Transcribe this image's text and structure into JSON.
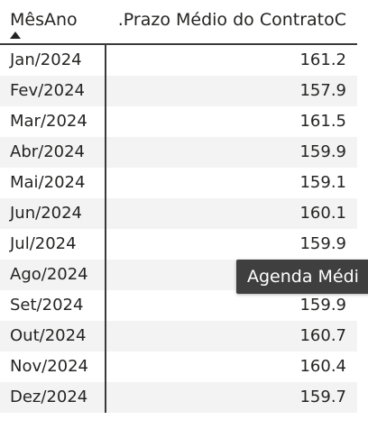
{
  "table": {
    "columns": {
      "month_header": "MêsAno",
      "value_header": ".Prazo Médio do ContratoC"
    },
    "sort": {
      "column": "MêsAno",
      "direction": "ascending",
      "icon": "sort-ascending-icon"
    },
    "rows": [
      {
        "month": "Jan/2024",
        "value": "161.2"
      },
      {
        "month": "Fev/2024",
        "value": "157.9"
      },
      {
        "month": "Mar/2024",
        "value": "161.5"
      },
      {
        "month": "Abr/2024",
        "value": "159.9"
      },
      {
        "month": "Mai/2024",
        "value": "159.1"
      },
      {
        "month": "Jun/2024",
        "value": "160.1"
      },
      {
        "month": "Jul/2024",
        "value": "159.9"
      },
      {
        "month": "Ago/2024",
        "value": ""
      },
      {
        "month": "Set/2024",
        "value": "159.9"
      },
      {
        "month": "Out/2024",
        "value": "160.7"
      },
      {
        "month": "Nov/2024",
        "value": "160.4"
      },
      {
        "month": "Dez/2024",
        "value": "159.7"
      }
    ]
  },
  "tooltip": {
    "text": "Agenda Médi"
  },
  "colors": {
    "text": "#252423",
    "alt_row": "#f3f3f3",
    "tooltip_bg": "#3f3f3f",
    "tooltip_text": "#ffffff",
    "border": "#3a3a3a"
  }
}
